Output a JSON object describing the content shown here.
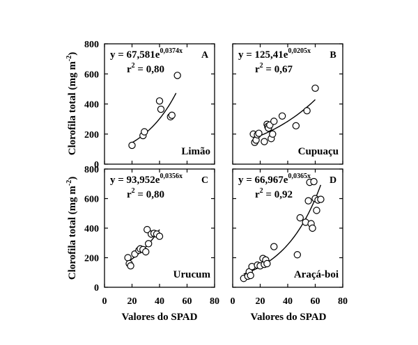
{
  "figure": {
    "ylabel": "Clorofila total",
    "ylabel_unit": "(mg m",
    "ylabel_unit_exp": "-2",
    "ylabel_unit_close": ")",
    "xlabel": "Valores do SPAD",
    "x_ticks": [
      "0",
      "20",
      "40",
      "60",
      "80"
    ],
    "y_ticks": [
      "0",
      "200",
      "400",
      "600",
      "800"
    ]
  },
  "chart_data": [
    {
      "type": "scatter",
      "panel_letter": "A",
      "species": "Limão",
      "equation_main": "y = 67,581e",
      "equation_exp": "0,0374x",
      "r2_value": " = 0,80",
      "xlim": [
        0,
        80
      ],
      "ylim": [
        0,
        800
      ],
      "fit": {
        "a": 67.581,
        "b": 0.0374,
        "x_range": [
          19,
          52
        ]
      },
      "points": [
        {
          "x": 20,
          "y": 125
        },
        {
          "x": 28,
          "y": 190
        },
        {
          "x": 29,
          "y": 215
        },
        {
          "x": 40,
          "y": 420
        },
        {
          "x": 41,
          "y": 365
        },
        {
          "x": 48,
          "y": 315
        },
        {
          "x": 49,
          "y": 325
        },
        {
          "x": 53,
          "y": 590
        }
      ]
    },
    {
      "type": "scatter",
      "panel_letter": "B",
      "species": "Cupuaçu",
      "equation_main": "y = 125,41e",
      "equation_exp": "0,0205x",
      "r2_value": " = 0,67",
      "xlim": [
        0,
        80
      ],
      "ylim": [
        0,
        800
      ],
      "fit": {
        "a": 125.41,
        "b": 0.0205,
        "x_range": [
          15,
          60
        ]
      },
      "points": [
        {
          "x": 15,
          "y": 200
        },
        {
          "x": 16,
          "y": 145
        },
        {
          "x": 17,
          "y": 160
        },
        {
          "x": 18,
          "y": 195
        },
        {
          "x": 19,
          "y": 205
        },
        {
          "x": 23,
          "y": 150
        },
        {
          "x": 25,
          "y": 265
        },
        {
          "x": 25.5,
          "y": 250
        },
        {
          "x": 26,
          "y": 240
        },
        {
          "x": 27,
          "y": 260
        },
        {
          "x": 28,
          "y": 170
        },
        {
          "x": 29,
          "y": 200
        },
        {
          "x": 30,
          "y": 285
        },
        {
          "x": 36,
          "y": 320
        },
        {
          "x": 46,
          "y": 255
        },
        {
          "x": 54,
          "y": 355
        },
        {
          "x": 60,
          "y": 505
        }
      ]
    },
    {
      "type": "scatter",
      "panel_letter": "C",
      "species": "Urucum",
      "equation_main": "y = 93,952e",
      "equation_exp": "0,0356x",
      "r2_value": " = 0,80",
      "xlim": [
        0,
        80
      ],
      "ylim": [
        0,
        800
      ],
      "fit": {
        "a": 93.952,
        "b": 0.0356,
        "x_range": [
          17,
          40
        ]
      },
      "points": [
        {
          "x": 17,
          "y": 200
        },
        {
          "x": 18,
          "y": 160
        },
        {
          "x": 19,
          "y": 145
        },
        {
          "x": 22,
          "y": 225
        },
        {
          "x": 25,
          "y": 250
        },
        {
          "x": 26,
          "y": 260
        },
        {
          "x": 28,
          "y": 255
        },
        {
          "x": 30,
          "y": 240
        },
        {
          "x": 31,
          "y": 390
        },
        {
          "x": 32,
          "y": 295
        },
        {
          "x": 34,
          "y": 360
        },
        {
          "x": 36,
          "y": 365
        },
        {
          "x": 38,
          "y": 360
        },
        {
          "x": 40,
          "y": 345
        }
      ]
    },
    {
      "type": "scatter",
      "panel_letter": "D",
      "species": "Araçá-boi",
      "equation_main": "y = 66,967e",
      "equation_exp": "0,0365x",
      "r2_value": " = 0,92",
      "xlim": [
        0,
        80
      ],
      "ylim": [
        0,
        800
      ],
      "fit": {
        "a": 66.967,
        "b": 0.0365,
        "x_range": [
          8,
          64
        ]
      },
      "points": [
        {
          "x": 8,
          "y": 60
        },
        {
          "x": 11,
          "y": 75
        },
        {
          "x": 12,
          "y": 105
        },
        {
          "x": 13,
          "y": 80
        },
        {
          "x": 14,
          "y": 140
        },
        {
          "x": 18,
          "y": 150
        },
        {
          "x": 20,
          "y": 145
        },
        {
          "x": 22,
          "y": 195
        },
        {
          "x": 23,
          "y": 155
        },
        {
          "x": 24,
          "y": 185
        },
        {
          "x": 25,
          "y": 160
        },
        {
          "x": 30,
          "y": 275
        },
        {
          "x": 47,
          "y": 220
        },
        {
          "x": 49,
          "y": 470
        },
        {
          "x": 53,
          "y": 440
        },
        {
          "x": 55,
          "y": 585
        },
        {
          "x": 56,
          "y": 710
        },
        {
          "x": 57,
          "y": 430
        },
        {
          "x": 58,
          "y": 400
        },
        {
          "x": 59,
          "y": 715
        },
        {
          "x": 60,
          "y": 600
        },
        {
          "x": 61,
          "y": 520
        },
        {
          "x": 62,
          "y": 590
        },
        {
          "x": 64,
          "y": 595
        }
      ]
    }
  ]
}
